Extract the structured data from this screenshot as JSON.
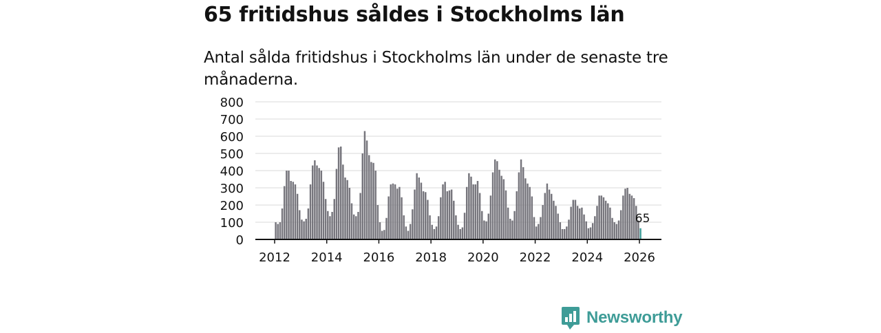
{
  "headline": "65 fritidshus såldes i Stockholms län",
  "subtitle": "Antal sålda fritidshus i Stockholms län under de senaste tre månaderna.",
  "brand": {
    "name": "Newsworthy",
    "color": "#3e9c97",
    "icon": "bar-chart-speech-bubble-icon"
  },
  "chart_data": {
    "type": "bar",
    "title": "",
    "xlabel": "",
    "ylabel": "",
    "ylim": [
      0,
      800
    ],
    "yticks": [
      "0",
      "100",
      "200",
      "300",
      "400",
      "500",
      "600",
      "700",
      "800"
    ],
    "xticks": [
      "2012",
      "2014",
      "2016",
      "2018",
      "2020",
      "2022",
      "2024",
      "2026"
    ],
    "grid": true,
    "legend": "none",
    "bar_color": "#76757c",
    "highlight_color": "#3e9c97",
    "first_month": "2012-01",
    "last_month": "2026-01",
    "highlight": {
      "month": "2026-01",
      "value": 65,
      "label": "65"
    },
    "months_per_year": 12,
    "values": [
      100,
      90,
      100,
      180,
      310,
      400,
      400,
      340,
      335,
      320,
      265,
      170,
      115,
      105,
      120,
      180,
      320,
      430,
      460,
      430,
      415,
      400,
      335,
      235,
      165,
      135,
      160,
      235,
      410,
      535,
      540,
      435,
      360,
      345,
      300,
      210,
      145,
      135,
      160,
      270,
      500,
      630,
      575,
      490,
      450,
      445,
      400,
      200,
      100,
      50,
      55,
      125,
      250,
      320,
      325,
      320,
      295,
      305,
      245,
      140,
      75,
      50,
      90,
      175,
      290,
      385,
      360,
      330,
      280,
      275,
      230,
      140,
      85,
      60,
      75,
      135,
      245,
      320,
      335,
      280,
      285,
      290,
      225,
      140,
      85,
      60,
      70,
      155,
      305,
      385,
      365,
      320,
      320,
      340,
      270,
      165,
      110,
      105,
      150,
      255,
      390,
      465,
      455,
      405,
      370,
      350,
      285,
      185,
      120,
      110,
      165,
      280,
      390,
      465,
      420,
      355,
      325,
      305,
      250,
      130,
      75,
      90,
      130,
      200,
      270,
      325,
      290,
      265,
      225,
      195,
      150,
      100,
      60,
      60,
      75,
      115,
      190,
      230,
      230,
      195,
      180,
      185,
      145,
      105,
      65,
      70,
      95,
      135,
      195,
      255,
      255,
      245,
      225,
      210,
      185,
      125,
      100,
      90,
      110,
      170,
      255,
      295,
      300,
      265,
      255,
      240,
      195,
      110,
      65
    ]
  }
}
